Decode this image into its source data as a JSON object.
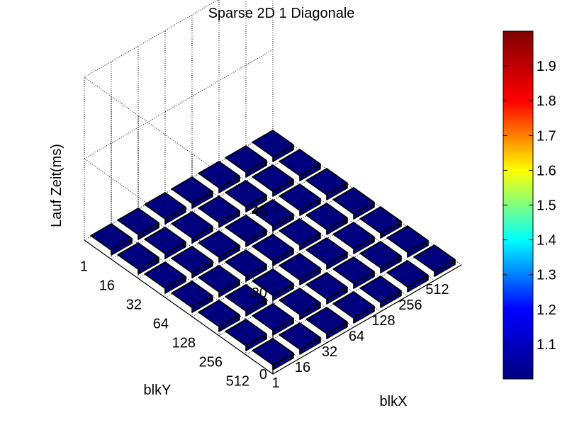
{
  "chart_data": {
    "type": "bar3d",
    "title": "Sparse 2D 1 Diagonale",
    "xlabel": "blkX",
    "ylabel": "blkY",
    "zlabel": "Lauf Zeit(ms)",
    "x_categories": [
      "1",
      "16",
      "32",
      "64",
      "128",
      "256",
      "512"
    ],
    "y_categories": [
      "1",
      "16",
      "32",
      "64",
      "128",
      "256",
      "512"
    ],
    "z_ticks": [
      "0",
      "20",
      "40"
    ],
    "zlim": [
      0,
      40
    ],
    "grid": true,
    "colormap": "jet",
    "values": [
      [
        1.2,
        1.2,
        1.2,
        1.2,
        1.2,
        1.2,
        1.2
      ],
      [
        1.2,
        1.2,
        1.2,
        1.2,
        1.2,
        1.2,
        1.2
      ],
      [
        1.2,
        1.2,
        1.2,
        1.2,
        1.2,
        1.2,
        1.2
      ],
      [
        1.2,
        1.2,
        1.2,
        1.2,
        1.2,
        1.2,
        1.2
      ],
      [
        1.2,
        1.2,
        1.2,
        1.2,
        1.2,
        1.2,
        1.2
      ],
      [
        1.2,
        1.2,
        1.2,
        1.2,
        1.2,
        1.2,
        1.2
      ],
      [
        1.2,
        1.2,
        1.2,
        1.2,
        1.2,
        1.2,
        1.2
      ]
    ],
    "bar_colors": [
      [
        "#00007f",
        "#00007f",
        "#00007f",
        "#00007f",
        "#00007f",
        "#00007f",
        "#00007f"
      ],
      [
        "#00007f",
        "#00007f",
        "#00007f",
        "#00007f",
        "#00007f",
        "#00007f",
        "#00007f"
      ],
      [
        "#00007f",
        "#00007f",
        "#00007f",
        "#00007f",
        "#00007f",
        "#00007f",
        "#00007f"
      ],
      [
        "#00007f",
        "#00007f",
        "#00007f",
        "#00007f",
        "#00007f",
        "#00007f",
        "#00007f"
      ],
      [
        "#00007f",
        "#00007f",
        "#00007f",
        "#00007f",
        "#00007f",
        "#00007f",
        "#00007f"
      ],
      [
        "#00007f",
        "#00007f",
        "#00007f",
        "#00007f",
        "#00007f",
        "#00007f",
        "#00007f"
      ],
      [
        "#00007f",
        "#00007f",
        "#00007f",
        "#00007f",
        "#00007f",
        "#00007f",
        "#00007f"
      ]
    ],
    "colorbar": {
      "ticks": [
        "1.1",
        "1.2",
        "1.3",
        "1.4",
        "1.5",
        "1.6",
        "1.7",
        "1.8",
        "1.9"
      ],
      "range": [
        1.0,
        2.0
      ],
      "stops": [
        "#00007f",
        "#0000ff",
        "#00ffff",
        "#ffff00",
        "#ff0000",
        "#7f0000"
      ]
    }
  }
}
